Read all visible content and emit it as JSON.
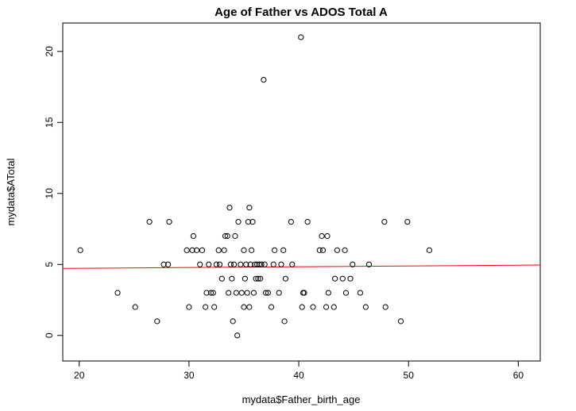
{
  "chart_data": {
    "type": "scatter",
    "title": "Age of Father vs ADOS Total A",
    "xlabel": "mydata$Father_birth_age",
    "ylabel": "mydata$ATotal",
    "xlim": [
      18.5,
      62
    ],
    "ylim": [
      -1.8,
      22
    ],
    "xticks": [
      20,
      30,
      40,
      50,
      60
    ],
    "yticks": [
      0,
      5,
      10,
      15,
      20
    ],
    "grid": false,
    "point_color": "#000000",
    "fit_line": {
      "color": "#ff0000",
      "y_at_xmin": 4.72,
      "y_at_xmax": 4.96
    },
    "points": [
      {
        "x": 20.1,
        "y": 6
      },
      {
        "x": 23.5,
        "y": 3
      },
      {
        "x": 25.1,
        "y": 2
      },
      {
        "x": 26.4,
        "y": 8
      },
      {
        "x": 27.1,
        "y": 1
      },
      {
        "x": 27.7,
        "y": 5
      },
      {
        "x": 28.1,
        "y": 5
      },
      {
        "x": 28.2,
        "y": 8
      },
      {
        "x": 29.8,
        "y": 6
      },
      {
        "x": 30.0,
        "y": 2
      },
      {
        "x": 30.3,
        "y": 6
      },
      {
        "x": 30.4,
        "y": 7
      },
      {
        "x": 30.7,
        "y": 6
      },
      {
        "x": 31.0,
        "y": 5
      },
      {
        "x": 31.2,
        "y": 6
      },
      {
        "x": 31.5,
        "y": 2
      },
      {
        "x": 31.6,
        "y": 3
      },
      {
        "x": 31.8,
        "y": 5
      },
      {
        "x": 32.0,
        "y": 3
      },
      {
        "x": 32.2,
        "y": 3
      },
      {
        "x": 32.3,
        "y": 2
      },
      {
        "x": 32.5,
        "y": 5
      },
      {
        "x": 32.7,
        "y": 6
      },
      {
        "x": 32.8,
        "y": 5
      },
      {
        "x": 33.0,
        "y": 4
      },
      {
        "x": 33.2,
        "y": 6
      },
      {
        "x": 33.3,
        "y": 7
      },
      {
        "x": 33.5,
        "y": 7
      },
      {
        "x": 33.6,
        "y": 3
      },
      {
        "x": 33.7,
        "y": 9
      },
      {
        "x": 33.8,
        "y": 5
      },
      {
        "x": 33.9,
        "y": 4
      },
      {
        "x": 34.0,
        "y": 1
      },
      {
        "x": 34.1,
        "y": 5
      },
      {
        "x": 34.2,
        "y": 7
      },
      {
        "x": 34.3,
        "y": 3
      },
      {
        "x": 34.4,
        "y": 0
      },
      {
        "x": 34.5,
        "y": 8
      },
      {
        "x": 34.7,
        "y": 5
      },
      {
        "x": 34.8,
        "y": 3
      },
      {
        "x": 35.0,
        "y": 2
      },
      {
        "x": 35.0,
        "y": 6
      },
      {
        "x": 35.1,
        "y": 4
      },
      {
        "x": 35.2,
        "y": 5
      },
      {
        "x": 35.3,
        "y": 3
      },
      {
        "x": 35.4,
        "y": 8
      },
      {
        "x": 35.5,
        "y": 9
      },
      {
        "x": 35.5,
        "y": 2
      },
      {
        "x": 35.6,
        "y": 5
      },
      {
        "x": 35.7,
        "y": 6
      },
      {
        "x": 35.8,
        "y": 8
      },
      {
        "x": 35.9,
        "y": 3
      },
      {
        "x": 36.0,
        "y": 5
      },
      {
        "x": 36.1,
        "y": 4
      },
      {
        "x": 36.2,
        "y": 5
      },
      {
        "x": 36.3,
        "y": 4
      },
      {
        "x": 36.4,
        "y": 5
      },
      {
        "x": 36.5,
        "y": 4
      },
      {
        "x": 36.6,
        "y": 5
      },
      {
        "x": 36.8,
        "y": 18
      },
      {
        "x": 36.9,
        "y": 5
      },
      {
        "x": 37.0,
        "y": 3
      },
      {
        "x": 37.2,
        "y": 3
      },
      {
        "x": 37.5,
        "y": 2
      },
      {
        "x": 37.7,
        "y": 5
      },
      {
        "x": 37.8,
        "y": 6
      },
      {
        "x": 38.2,
        "y": 3
      },
      {
        "x": 38.4,
        "y": 5
      },
      {
        "x": 38.6,
        "y": 6
      },
      {
        "x": 38.7,
        "y": 1
      },
      {
        "x": 38.8,
        "y": 4
      },
      {
        "x": 39.3,
        "y": 8
      },
      {
        "x": 39.4,
        "y": 5
      },
      {
        "x": 40.2,
        "y": 21
      },
      {
        "x": 40.3,
        "y": 2
      },
      {
        "x": 40.4,
        "y": 3
      },
      {
        "x": 40.5,
        "y": 3
      },
      {
        "x": 40.8,
        "y": 8
      },
      {
        "x": 41.3,
        "y": 2
      },
      {
        "x": 41.9,
        "y": 6
      },
      {
        "x": 42.1,
        "y": 7
      },
      {
        "x": 42.2,
        "y": 6
      },
      {
        "x": 42.5,
        "y": 2
      },
      {
        "x": 42.6,
        "y": 7
      },
      {
        "x": 42.7,
        "y": 3
      },
      {
        "x": 43.2,
        "y": 2
      },
      {
        "x": 43.3,
        "y": 4
      },
      {
        "x": 43.5,
        "y": 6
      },
      {
        "x": 44.0,
        "y": 4
      },
      {
        "x": 44.2,
        "y": 6
      },
      {
        "x": 44.3,
        "y": 3
      },
      {
        "x": 44.7,
        "y": 4
      },
      {
        "x": 44.9,
        "y": 5
      },
      {
        "x": 45.6,
        "y": 3
      },
      {
        "x": 46.1,
        "y": 2
      },
      {
        "x": 46.4,
        "y": 5
      },
      {
        "x": 47.8,
        "y": 8
      },
      {
        "x": 47.9,
        "y": 2
      },
      {
        "x": 49.3,
        "y": 1
      },
      {
        "x": 49.9,
        "y": 8
      },
      {
        "x": 51.9,
        "y": 6
      }
    ]
  }
}
